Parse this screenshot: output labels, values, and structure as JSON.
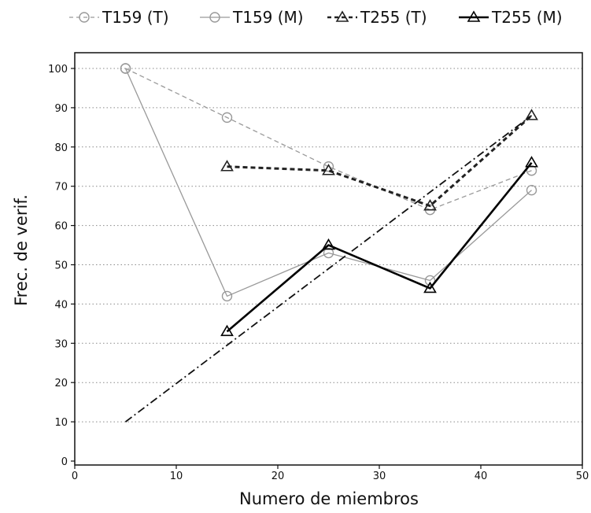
{
  "chart_data": {
    "type": "line",
    "xlabel": "Numero de miembros",
    "ylabel": "Frec. de verif.",
    "xlim": [
      0,
      50
    ],
    "ylim": [
      0,
      105
    ],
    "xticks": [
      "0",
      "10",
      "20",
      "30",
      "40",
      "50"
    ],
    "yticks": [
      "0",
      "10",
      "20",
      "30",
      "40",
      "50",
      "60",
      "70",
      "80",
      "90",
      "100"
    ],
    "grid": "horizontal-dotted",
    "legend_position": "top",
    "series": [
      {
        "name": "T159 (T)",
        "style": "dashed",
        "marker": "circle",
        "color": "#999999",
        "points": [
          [
            5,
            100
          ],
          [
            15,
            87.5
          ],
          [
            25,
            75
          ],
          [
            35,
            64
          ],
          [
            45,
            74
          ]
        ]
      },
      {
        "name": "T159 (M)",
        "style": "solid",
        "marker": "circle",
        "color": "#999999",
        "points": [
          [
            5,
            100
          ],
          [
            15,
            42
          ],
          [
            25,
            53
          ],
          [
            35,
            46
          ],
          [
            45,
            69
          ]
        ]
      },
      {
        "name": "T255 (T)",
        "style": "dashed",
        "marker": "triangle",
        "color": "#222222",
        "points": [
          [
            15,
            75
          ],
          [
            25,
            74
          ],
          [
            35,
            65
          ],
          [
            45,
            88
          ]
        ]
      },
      {
        "name": "T255 (M)",
        "style": "solid",
        "marker": "triangle",
        "color": "#000000",
        "points": [
          [
            15,
            33
          ],
          [
            25,
            55
          ],
          [
            35,
            44
          ],
          [
            45,
            76
          ]
        ]
      },
      {
        "name": "",
        "style": "dashdot",
        "marker": "none",
        "color": "#111111",
        "points": [
          [
            5,
            10
          ],
          [
            45,
            88
          ]
        ]
      }
    ]
  }
}
